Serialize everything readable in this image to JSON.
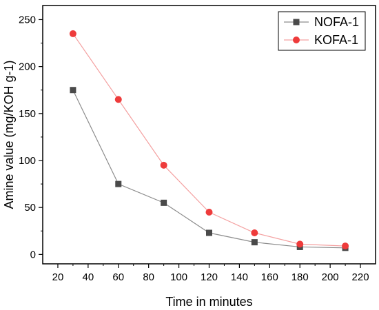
{
  "chart_data": {
    "type": "line",
    "title": "",
    "xlabel": "Time in minutes",
    "ylabel": "Amine value (mg/KOH g-1)",
    "xlim": [
      10,
      230
    ],
    "ylim": [
      -10,
      265
    ],
    "x_ticks": [
      20,
      40,
      60,
      80,
      100,
      120,
      140,
      160,
      180,
      200,
      220
    ],
    "y_ticks": [
      0,
      50,
      100,
      150,
      200,
      250
    ],
    "grid": false,
    "legend_position": "top-right",
    "series": [
      {
        "name": "NOFA-1",
        "marker": "square",
        "color": "#4a4a4a",
        "line_color": "#8c8c8c",
        "x": [
          30,
          60,
          90,
          120,
          150,
          180,
          210
        ],
        "y": [
          175,
          75,
          55,
          23,
          13,
          8,
          7
        ]
      },
      {
        "name": "KOFA-1",
        "marker": "circle",
        "color": "#ee3b3b",
        "line_color": "#f4a0a0",
        "x": [
          30,
          60,
          90,
          120,
          150,
          180,
          210
        ],
        "y": [
          235,
          165,
          95,
          45,
          23,
          11,
          9
        ]
      }
    ]
  }
}
